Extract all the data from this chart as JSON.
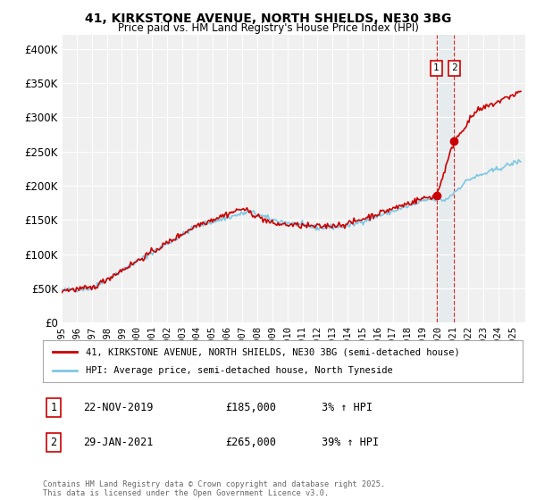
{
  "title1": "41, KIRKSTONE AVENUE, NORTH SHIELDS, NE30 3BG",
  "title2": "Price paid vs. HM Land Registry's House Price Index (HPI)",
  "ylim": [
    0,
    420000
  ],
  "xlim_start": 1995.0,
  "xlim_end": 2025.8,
  "yticks": [
    0,
    50000,
    100000,
    150000,
    200000,
    250000,
    300000,
    350000,
    400000
  ],
  "ytick_labels": [
    "£0",
    "£50K",
    "£100K",
    "£150K",
    "£200K",
    "£250K",
    "£300K",
    "£350K",
    "£400K"
  ],
  "xticks": [
    1995,
    1996,
    1997,
    1998,
    1999,
    2000,
    2001,
    2002,
    2003,
    2004,
    2005,
    2006,
    2007,
    2008,
    2009,
    2010,
    2011,
    2012,
    2013,
    2014,
    2015,
    2016,
    2017,
    2018,
    2019,
    2020,
    2021,
    2022,
    2023,
    2024,
    2025
  ],
  "hpi_color": "#7ec8e3",
  "price_color": "#cc0000",
  "marker1_date": 2019.896,
  "marker1_value": 185000,
  "marker2_date": 2021.08,
  "marker2_value": 265000,
  "vline1_x": 2019.896,
  "vline2_x": 2021.08,
  "legend_line1": "41, KIRKSTONE AVENUE, NORTH SHIELDS, NE30 3BG (semi-detached house)",
  "legend_line2": "HPI: Average price, semi-detached house, North Tyneside",
  "annotation1_date": "22-NOV-2019",
  "annotation1_price": "£185,000",
  "annotation1_hpi": "3% ↑ HPI",
  "annotation2_date": "29-JAN-2021",
  "annotation2_price": "£265,000",
  "annotation2_hpi": "39% ↑ HPI",
  "footnote": "Contains HM Land Registry data © Crown copyright and database right 2025.\nThis data is licensed under the Open Government Licence v3.0.",
  "bg_color": "#ffffff",
  "plot_bg_color": "#f0f0f0",
  "grid_color": "#ffffff"
}
